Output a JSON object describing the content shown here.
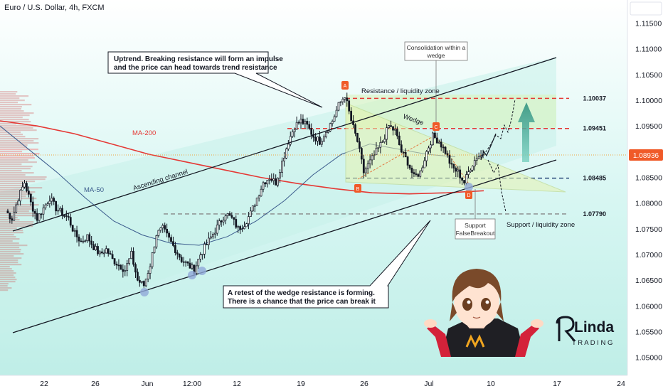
{
  "title": "Euro / U.S. Dollar, 4h, FXCM",
  "chart_data": {
    "type": "candlestick",
    "symbol": "Euro / U.S. Dollar",
    "timeframe": "4h",
    "source": "FXCM",
    "ylim": [
      1.0465,
      1.1195
    ],
    "y_ticks": [
      "1.11500",
      "1.11000",
      "1.10500",
      "1.10000",
      "1.09500",
      "1.09000",
      "1.08500",
      "1.08000",
      "1.07500",
      "1.07000",
      "1.06500",
      "1.06000",
      "1.05500",
      "1.05000"
    ],
    "x_ticks": [
      "22",
      "26",
      "Jun",
      "12:00",
      "12",
      "19",
      "26",
      "Jul",
      "10",
      "17",
      "24"
    ],
    "last_price": "1.08936",
    "price_points": [
      1.0785,
      1.077,
      1.081,
      1.084,
      1.08,
      1.077,
      1.079,
      1.081,
      1.079,
      1.078,
      1.077,
      1.074,
      1.0725,
      1.0735,
      1.0715,
      1.07,
      1.071,
      1.069,
      1.068,
      1.067,
      1.07,
      1.065,
      1.064,
      1.068,
      1.074,
      1.075,
      1.073,
      1.071,
      1.069,
      1.068,
      1.067,
      1.07,
      1.072,
      1.074,
      1.076,
      1.078,
      1.077,
      1.075,
      1.076,
      1.078,
      1.081,
      1.084,
      1.085,
      1.084,
      1.088,
      1.092,
      1.095,
      1.096,
      1.095,
      1.093,
      1.092,
      1.094,
      1.096,
      1.099,
      1.101,
      1.096,
      1.092,
      1.086,
      1.088,
      1.09,
      1.092,
      1.095,
      1.094,
      1.09,
      1.088,
      1.085,
      1.086,
      1.09,
      1.093,
      1.092,
      1.09,
      1.087,
      1.086,
      1.084,
      1.087,
      1.089,
      1.0894
    ],
    "levels": [
      {
        "label": "1.10037",
        "value": 1.10037,
        "color": "#e53935",
        "style": "dashed"
      },
      {
        "label": "1.09451",
        "value": 1.09451,
        "color": "#e53935",
        "style": "dashed"
      },
      {
        "label": "1.08485",
        "value": 1.08485,
        "color": "#2a4a7a",
        "style": "dashed"
      },
      {
        "label": "1.07790",
        "value": 1.0779,
        "color": "#888888",
        "style": "dashed"
      }
    ],
    "moving_averages": [
      {
        "name": "MA-200",
        "color": "#e53935",
        "points": [
          1.096,
          1.095,
          1.0935,
          1.0915,
          1.0895,
          1.088,
          1.0865,
          1.085,
          1.0838,
          1.0828,
          1.082,
          1.0818,
          1.082,
          1.0824
        ]
      },
      {
        "name": "MA-50",
        "color": "#3b5b8c",
        "points": [
          1.095,
          1.0905,
          1.086,
          1.081,
          1.0765,
          1.0738,
          1.0722,
          1.0718,
          1.0735,
          1.0765,
          1.0805,
          1.0855,
          1.0895,
          1.0915,
          1.0905,
          1.0895,
          1.089
        ]
      }
    ]
  },
  "annotations": {
    "uptrend_line1": "Uptrend. Breaking resistance will form an impulse",
    "uptrend_line2": "and the price can head towards trend resistance",
    "retest_line1": "A retest of the wedge resistance is forming.",
    "retest_line2": "There is a chance that the price can break it",
    "consolidation_line1": "Consolidation within a",
    "consolidation_line2": "wedge",
    "resistance_zone": "Resistance / liquidity zone",
    "support_zone": "Support / liquidity zone",
    "wedge": "Wedge",
    "ascending_channel": "Ascending channel",
    "ma200": "MA-200",
    "ma50": "MA-50",
    "support_line1": "Support",
    "support_line2": "FalseBreakout",
    "marker_a": "A",
    "marker_b": "B",
    "marker_c": "C",
    "marker_d": "D"
  },
  "brand": {
    "line1": "Linda",
    "line2": "T R A D I N G"
  },
  "colors": {
    "bull": "#ffffff",
    "bear": "#131722",
    "channel_fill": "#c8f1ec",
    "wedge_fill": "#e9f2b8",
    "price_tag": "#f05a28"
  }
}
